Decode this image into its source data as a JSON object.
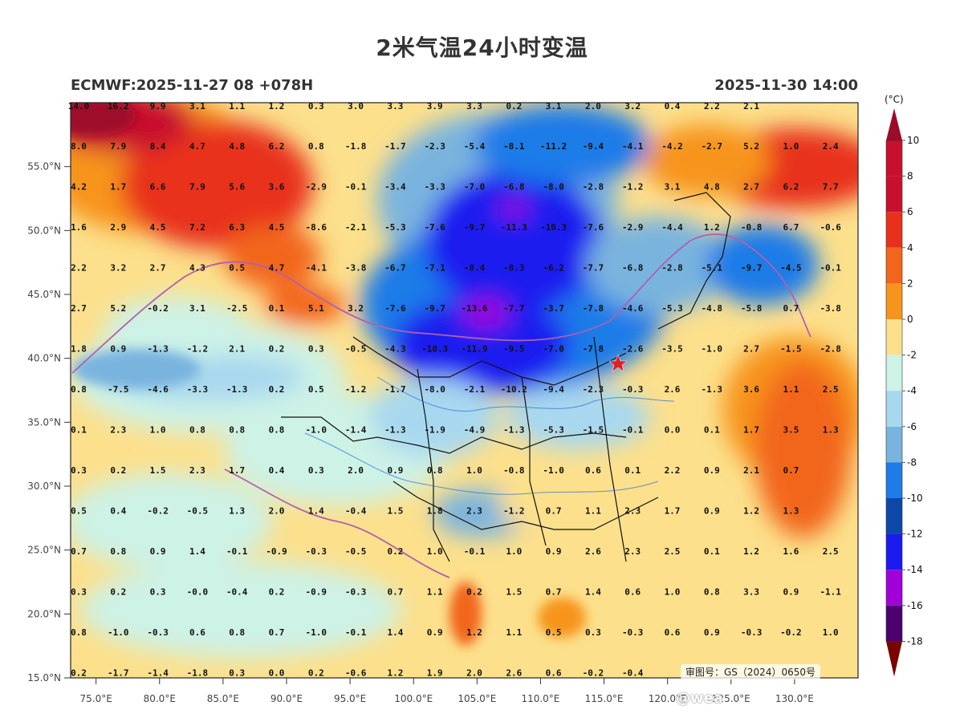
{
  "title": "2米气温24小时变温",
  "subtitle_left": "ECMWF:2025-11-27 08 +078H",
  "subtitle_right": "2025-11-30 14:00",
  "map_extent": {
    "lon_min": 73,
    "lon_max": 135,
    "lat_min": 15,
    "lat_max": 60
  },
  "lat_ticks": [
    "55.0°N",
    "50.0°N",
    "45.0°N",
    "40.0°N",
    "35.0°N",
    "30.0°N",
    "25.0°N",
    "20.0°N",
    "15.0°N"
  ],
  "lon_ticks": [
    "75.0°E",
    "80.0°E",
    "85.0°E",
    "90.0°E",
    "95.0°E",
    "100.0°E",
    "105.0°E",
    "110.0°E",
    "115.0°E",
    "120.0°E",
    "125.0°E",
    "130.0°E"
  ],
  "legend": {
    "unit": "(°C)",
    "labels": [
      "10",
      "8",
      "6",
      "4",
      "2",
      "0",
      "-2",
      "-4",
      "-6",
      "-8",
      "-10",
      "-12",
      "-14",
      "-16",
      "-18"
    ],
    "colors": [
      "#9e0a2a",
      "#c8102e",
      "#e8301c",
      "#f2661b",
      "#f7941d",
      "#fce08c",
      "#cdf2e6",
      "#a8d8ef",
      "#79b4de",
      "#1f7be8",
      "#0d47a8",
      "#1a1aef",
      "#a100d9",
      "#4b006e",
      "#7b0000"
    ]
  },
  "value_rows": [
    [
      "8.0",
      "7.9",
      "8.4",
      "4.7",
      "4.8",
      "6.2",
      "0.8",
      "-1.8",
      "-1.7",
      "-2.3",
      "-5.4",
      "-8.1",
      "-11.2",
      "-9.4",
      "-4.1",
      "-4.2",
      "-2.7",
      "5.2",
      "1.0",
      "2.4"
    ],
    [
      "4.2",
      "1.7",
      "6.6",
      "7.9",
      "5.6",
      "3.6",
      "-2.9",
      "-0.1",
      "-3.4",
      "-3.3",
      "-7.0",
      "-6.8",
      "-8.0",
      "-2.8",
      "-1.2",
      "3.1",
      "4.8",
      "2.7",
      "6.2",
      "7.7"
    ],
    [
      "1.6",
      "2.9",
      "4.5",
      "7.2",
      "6.3",
      "4.5",
      "-8.6",
      "-2.1",
      "-5.3",
      "-7.6",
      "-9.7",
      "-11.3",
      "-10.3",
      "-7.6",
      "-2.9",
      "-4.4",
      "1.2",
      "-0.8",
      "6.7",
      "-0.6"
    ],
    [
      "2.2",
      "3.2",
      "2.7",
      "4.3",
      "0.5",
      "4.7",
      "-4.1",
      "-3.8",
      "-6.7",
      "-7.1",
      "-8.4",
      "-8.3",
      "-6.2",
      "-7.7",
      "-6.8",
      "-2.8",
      "-5.1",
      "-9.7",
      "-4.5",
      "-0.1"
    ],
    [
      "2.7",
      "5.2",
      "-0.2",
      "3.1",
      "-2.5",
      "0.1",
      "5.1",
      "3.2",
      "-7.6",
      "-9.7",
      "-13.6",
      "-7.7",
      "-3.7",
      "-7.8",
      "-4.6",
      "-5.3",
      "-4.8",
      "-5.8",
      "0.7",
      "-3.8"
    ],
    [
      "1.8",
      "0.9",
      "-1.3",
      "-1.2",
      "2.1",
      "0.2",
      "0.3",
      "-0.5",
      "-4.3",
      "-10.3",
      "-11.9",
      "-9.5",
      "-7.0",
      "-7.8",
      "-2.6",
      "-3.5",
      "-1.0",
      "2.7",
      "-1.5",
      "-2.8"
    ],
    [
      "0.8",
      "-7.5",
      "-4.6",
      "-3.3",
      "-1.3",
      "0.2",
      "0.5",
      "-1.2",
      "-1.7",
      "-8.0",
      "-2.1",
      "-10.2",
      "-9.4",
      "-2.3",
      "-0.3",
      "2.6",
      "-1.3",
      "3.6",
      "1.1",
      "2.5"
    ],
    [
      "0.1",
      "2.3",
      "1.0",
      "0.8",
      "0.8",
      "0.8",
      "-1.0",
      "-1.4",
      "-1.3",
      "-1.9",
      "-4.9",
      "-1.3",
      "-5.3",
      "-1.5",
      "-0.1",
      "0.0",
      "0.1",
      "1.7",
      "3.5",
      "1.3"
    ],
    [
      "0.3",
      "0.2",
      "1.5",
      "2.3",
      "1.7",
      "0.4",
      "0.3",
      "2.0",
      "0.9",
      "0.8",
      "1.0",
      "-0.8",
      "-1.0",
      "0.6",
      "0.1",
      "2.2",
      "0.9",
      "2.1",
      "0.7"
    ],
    [
      "0.5",
      "0.4",
      "-0.2",
      "-0.5",
      "1.3",
      "2.0",
      "1.4",
      "-0.4",
      "1.5",
      "1.8",
      "2.3",
      "-1.2",
      "0.7",
      "1.1",
      "2.3",
      "1.7",
      "0.9",
      "1.2",
      "1.3"
    ],
    [
      "0.7",
      "0.8",
      "0.9",
      "1.4",
      "-0.1",
      "-0.9",
      "-0.3",
      "-0.5",
      "0.2",
      "1.0",
      "-0.1",
      "1.0",
      "0.9",
      "2.6",
      "2.3",
      "2.5",
      "0.1",
      "1.2",
      "1.6",
      "2.5"
    ],
    [
      "0.3",
      "0.2",
      "0.3",
      "-0.0",
      "-0.4",
      "0.2",
      "-0.9",
      "-0.3",
      "0.7",
      "1.1",
      "0.2",
      "1.5",
      "0.7",
      "1.4",
      "0.6",
      "1.0",
      "0.8",
      "3.3",
      "0.9",
      "-1.1"
    ],
    [
      "0.8",
      "-1.0",
      "-0.3",
      "0.6",
      "0.8",
      "0.7",
      "-1.0",
      "-0.1",
      "1.4",
      "0.9",
      "1.2",
      "1.1",
      "0.5",
      "0.3",
      "-0.3",
      "0.6",
      "0.9",
      "-0.3",
      "-0.2",
      "1.0"
    ],
    [
      "0.2",
      "-1.7",
      "-1.4",
      "-1.8",
      "0.3",
      "0.0",
      "0.2",
      "-0.6",
      "1.2",
      "1.9",
      "2.0",
      "2.6",
      "0.6",
      "-0.2",
      "-0.4"
    ]
  ],
  "top_row_partial": [
    "14.0",
    "16.2",
    "9.9",
    "3.1",
    "1.1",
    "1.2",
    "0.3",
    "3.0",
    "3.3",
    "3.9",
    "3.3",
    "0.2",
    "3.1",
    "2.0",
    "3.2",
    "0.4",
    "2.2",
    "2.1"
  ],
  "marker": {
    "type": "star",
    "color": "#e02020"
  },
  "review_number": "审图号：GS（2024）0650号",
  "watermark": "@wea"
}
